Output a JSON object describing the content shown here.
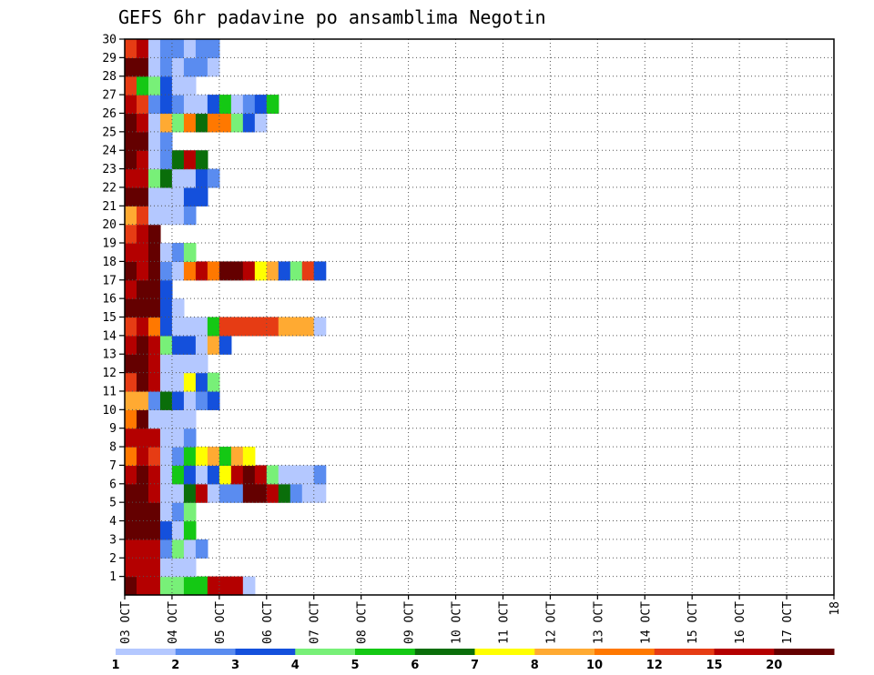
{
  "chart_data": {
    "type": "heatmap",
    "title": "GEFS 6hr padavine po ansamblima Negotin",
    "xlabel": "",
    "ylabel": "",
    "x_ticks": [
      "03 OCT",
      "04 OCT",
      "05 OCT",
      "06 OCT",
      "07 OCT",
      "08 OCT",
      "09 OCT",
      "10 OCT",
      "11 OCT",
      "12 OCT",
      "13 OCT",
      "14 OCT",
      "15 OCT",
      "16 OCT",
      "17 OCT",
      "18"
    ],
    "x_range": [
      "2018-10-03T00:00",
      "2018-10-18T00:00"
    ],
    "time_step_hours": 6,
    "y_ticks": [
      "1",
      "2",
      "3",
      "4",
      "5",
      "6",
      "7",
      "8",
      "9",
      "10",
      "11",
      "12",
      "13",
      "14",
      "15",
      "16",
      "17",
      "18",
      "19",
      "20",
      "21",
      "22",
      "23",
      "24",
      "25",
      "26",
      "27",
      "28",
      "29",
      "30"
    ],
    "y_range": [
      0,
      30
    ],
    "grid": "dotted",
    "legend": {
      "placement": "bottom",
      "labels": [
        "1",
        "2",
        "3",
        "4",
        "5",
        "6",
        "7",
        "8",
        "10",
        "12",
        "15",
        "20"
      ],
      "colors": [
        "#b4c8ff",
        "#5a8cf0",
        "#1450dc",
        "#78f078",
        "#14c814",
        "#0a6e0a",
        "#ffff00",
        "#ffaa32",
        "#ff7800",
        "#e63c14",
        "#b40000",
        "#640000"
      ]
    },
    "colors": {
      "1": "#b4c8ff",
      "2": "#5a8cf0",
      "3": "#1450dc",
      "4": "#78f078",
      "5": "#14c814",
      "6": "#0a6e0a",
      "7": "#ffff00",
      "8": "#ffaa32",
      "10": "#ff7800",
      "12": "#e63c14",
      "15": "#b40000",
      "20": "#640000"
    },
    "cells": {
      "0": [
        [
          0,
          20
        ],
        [
          1,
          15
        ],
        [
          2,
          15
        ],
        [
          3,
          4
        ],
        [
          4,
          4
        ],
        [
          5,
          5
        ],
        [
          6,
          5
        ],
        [
          7,
          15
        ],
        [
          8,
          15
        ],
        [
          9,
          15
        ],
        [
          10,
          1
        ]
      ],
      "1": [
        [
          0,
          15
        ],
        [
          1,
          15
        ],
        [
          2,
          15
        ],
        [
          3,
          1
        ],
        [
          4,
          1
        ],
        [
          5,
          1
        ]
      ],
      "2": [
        [
          0,
          15
        ],
        [
          1,
          15
        ],
        [
          2,
          15
        ],
        [
          3,
          2
        ],
        [
          4,
          4
        ],
        [
          5,
          1
        ],
        [
          6,
          2
        ]
      ],
      "3": [
        [
          0,
          20
        ],
        [
          1,
          20
        ],
        [
          2,
          20
        ],
        [
          3,
          3
        ],
        [
          4,
          1
        ],
        [
          5,
          5
        ]
      ],
      "4": [
        [
          0,
          20
        ],
        [
          1,
          20
        ],
        [
          2,
          20
        ],
        [
          3,
          1
        ],
        [
          4,
          2
        ],
        [
          5,
          4
        ]
      ],
      "5": [
        [
          0,
          20
        ],
        [
          1,
          20
        ],
        [
          2,
          15
        ],
        [
          3,
          1
        ],
        [
          4,
          1
        ],
        [
          5,
          6
        ],
        [
          6,
          15
        ],
        [
          7,
          1
        ],
        [
          8,
          2
        ],
        [
          9,
          2
        ],
        [
          10,
          20
        ],
        [
          11,
          20
        ],
        [
          12,
          15
        ],
        [
          13,
          6
        ],
        [
          14,
          2
        ],
        [
          15,
          1
        ],
        [
          16,
          1
        ]
      ],
      "6": [
        [
          0,
          15
        ],
        [
          1,
          20
        ],
        [
          2,
          15
        ],
        [
          3,
          1
        ],
        [
          4,
          5
        ],
        [
          5,
          3
        ],
        [
          6,
          1
        ],
        [
          7,
          3
        ],
        [
          8,
          7
        ],
        [
          9,
          15
        ],
        [
          10,
          20
        ],
        [
          11,
          15
        ],
        [
          12,
          4
        ],
        [
          13,
          1
        ],
        [
          14,
          1
        ],
        [
          15,
          1
        ],
        [
          16,
          2
        ]
      ],
      "7": [
        [
          0,
          10
        ],
        [
          1,
          15
        ],
        [
          2,
          12
        ],
        [
          3,
          1
        ],
        [
          4,
          2
        ],
        [
          5,
          5
        ],
        [
          6,
          7
        ],
        [
          7,
          8
        ],
        [
          8,
          5
        ],
        [
          9,
          8
        ],
        [
          10,
          7
        ]
      ],
      "8": [
        [
          0,
          15
        ],
        [
          1,
          15
        ],
        [
          2,
          15
        ],
        [
          3,
          1
        ],
        [
          4,
          1
        ],
        [
          5,
          2
        ]
      ],
      "9": [
        [
          0,
          10
        ],
        [
          1,
          20
        ],
        [
          2,
          1
        ],
        [
          3,
          1
        ],
        [
          4,
          1
        ],
        [
          5,
          1
        ]
      ],
      "10": [
        [
          0,
          8
        ],
        [
          1,
          8
        ],
        [
          2,
          2
        ],
        [
          3,
          6
        ],
        [
          4,
          3
        ],
        [
          5,
          1
        ],
        [
          6,
          2
        ],
        [
          7,
          3
        ]
      ],
      "11": [
        [
          0,
          12
        ],
        [
          1,
          20
        ],
        [
          2,
          15
        ],
        [
          3,
          1
        ],
        [
          4,
          1
        ],
        [
          5,
          7
        ],
        [
          6,
          3
        ],
        [
          7,
          4
        ]
      ],
      "12": [
        [
          0,
          20
        ],
        [
          1,
          20
        ],
        [
          2,
          15
        ],
        [
          3,
          1
        ],
        [
          4,
          1
        ],
        [
          5,
          1
        ],
        [
          6,
          1
        ]
      ],
      "13": [
        [
          0,
          15
        ],
        [
          1,
          20
        ],
        [
          2,
          15
        ],
        [
          3,
          4
        ],
        [
          4,
          3
        ],
        [
          5,
          3
        ],
        [
          6,
          1
        ],
        [
          7,
          8
        ],
        [
          8,
          3
        ]
      ],
      "14": [
        [
          0,
          12
        ],
        [
          1,
          15
        ],
        [
          2,
          10
        ],
        [
          3,
          3
        ],
        [
          4,
          1
        ],
        [
          5,
          1
        ],
        [
          6,
          1
        ],
        [
          7,
          5
        ],
        [
          8,
          12
        ],
        [
          9,
          12
        ],
        [
          10,
          12
        ],
        [
          11,
          12
        ],
        [
          12,
          12
        ],
        [
          13,
          8
        ],
        [
          14,
          8
        ],
        [
          15,
          8
        ],
        [
          16,
          1
        ]
      ],
      "15": [
        [
          0,
          20
        ],
        [
          1,
          20
        ],
        [
          2,
          20
        ],
        [
          3,
          3
        ],
        [
          4,
          1
        ]
      ],
      "16": [
        [
          0,
          15
        ],
        [
          1,
          20
        ],
        [
          2,
          20
        ],
        [
          3,
          3
        ]
      ],
      "17": [
        [
          0,
          20
        ],
        [
          1,
          15
        ],
        [
          2,
          20
        ],
        [
          3,
          2
        ],
        [
          4,
          1
        ],
        [
          5,
          10
        ],
        [
          6,
          15
        ],
        [
          7,
          10
        ],
        [
          8,
          20
        ],
        [
          9,
          20
        ],
        [
          10,
          15
        ],
        [
          11,
          7
        ],
        [
          12,
          8
        ],
        [
          13,
          3
        ],
        [
          14,
          4
        ],
        [
          15,
          12
        ],
        [
          16,
          3
        ]
      ],
      "18": [
        [
          0,
          15
        ],
        [
          1,
          15
        ],
        [
          2,
          20
        ],
        [
          3,
          1
        ],
        [
          4,
          2
        ],
        [
          5,
          4
        ]
      ],
      "19": [
        [
          0,
          12
        ],
        [
          1,
          15
        ],
        [
          2,
          20
        ]
      ],
      "20": [
        [
          0,
          8
        ],
        [
          1,
          12
        ],
        [
          2,
          1
        ],
        [
          3,
          1
        ],
        [
          4,
          1
        ],
        [
          5,
          2
        ]
      ],
      "21": [
        [
          0,
          20
        ],
        [
          1,
          20
        ],
        [
          2,
          1
        ],
        [
          3,
          1
        ],
        [
          4,
          1
        ],
        [
          5,
          3
        ],
        [
          6,
          3
        ]
      ],
      "22": [
        [
          0,
          15
        ],
        [
          1,
          15
        ],
        [
          2,
          4
        ],
        [
          3,
          6
        ],
        [
          4,
          1
        ],
        [
          5,
          1
        ],
        [
          6,
          3
        ],
        [
          7,
          2
        ]
      ],
      "23": [
        [
          0,
          20
        ],
        [
          1,
          15
        ],
        [
          2,
          1
        ],
        [
          3,
          2
        ],
        [
          4,
          6
        ],
        [
          5,
          15
        ],
        [
          6,
          6
        ]
      ],
      "24": [
        [
          0,
          20
        ],
        [
          1,
          20
        ],
        [
          2,
          1
        ],
        [
          3,
          2
        ]
      ],
      "25": [
        [
          0,
          20
        ],
        [
          1,
          15
        ],
        [
          2,
          1
        ],
        [
          3,
          8
        ],
        [
          4,
          4
        ],
        [
          5,
          10
        ],
        [
          6,
          6
        ],
        [
          7,
          10
        ],
        [
          8,
          10
        ],
        [
          9,
          4
        ],
        [
          10,
          3
        ],
        [
          11,
          1
        ]
      ],
      "26": [
        [
          0,
          15
        ],
        [
          1,
          12
        ],
        [
          2,
          2
        ],
        [
          3,
          3
        ],
        [
          4,
          2
        ],
        [
          5,
          1
        ],
        [
          6,
          1
        ],
        [
          7,
          3
        ],
        [
          8,
          5
        ],
        [
          9,
          1
        ],
        [
          10,
          2
        ],
        [
          11,
          3
        ],
        [
          12,
          5
        ]
      ],
      "27": [
        [
          0,
          12
        ],
        [
          1,
          5
        ],
        [
          2,
          4
        ],
        [
          3,
          3
        ],
        [
          4,
          1
        ],
        [
          5,
          1
        ]
      ],
      "28": [
        [
          0,
          20
        ],
        [
          1,
          20
        ],
        [
          2,
          1
        ],
        [
          3,
          2
        ],
        [
          4,
          1
        ],
        [
          5,
          2
        ],
        [
          6,
          2
        ],
        [
          7,
          1
        ]
      ],
      "29": [
        [
          0,
          12
        ],
        [
          1,
          15
        ],
        [
          2,
          1
        ],
        [
          3,
          2
        ],
        [
          4,
          2
        ],
        [
          5,
          1
        ],
        [
          6,
          2
        ],
        [
          7,
          2
        ]
      ]
    }
  }
}
